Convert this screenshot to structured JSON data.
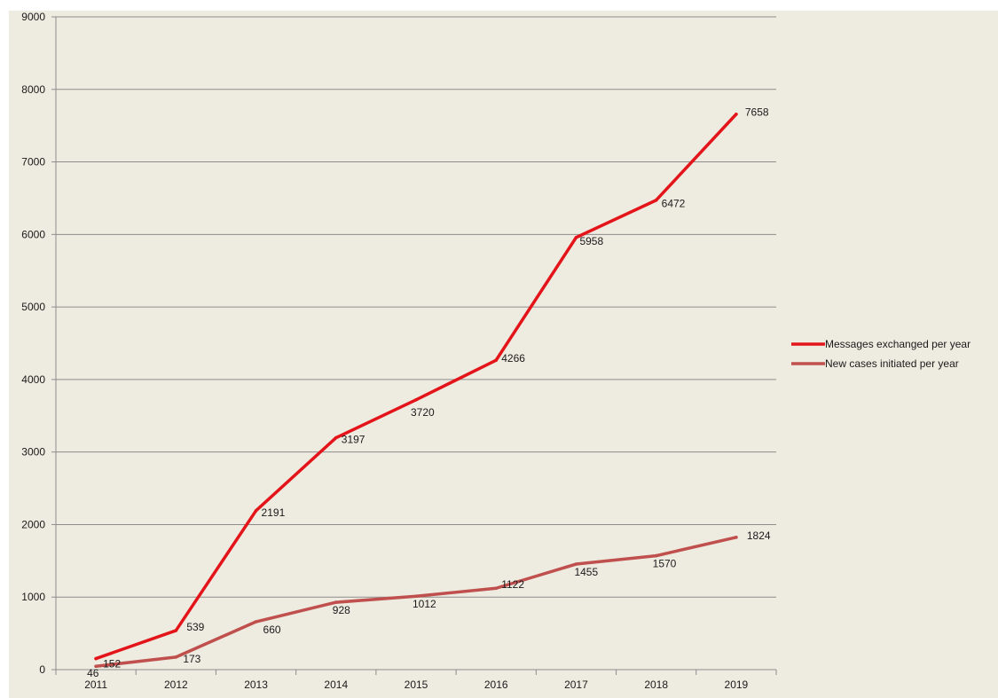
{
  "chart_data": {
    "type": "line",
    "categories": [
      "2011",
      "2012",
      "2013",
      "2014",
      "2015",
      "2016",
      "2017",
      "2018",
      "2019"
    ],
    "series": [
      {
        "name": "Messages exchanged per year",
        "color": "#e3151a",
        "values": [
          152,
          539,
          2191,
          3197,
          3720,
          4266,
          5958,
          6472,
          7658
        ],
        "labels": [
          "152",
          "539",
          "2191",
          "3197",
          "3720",
          "4266",
          "5958",
          "6472",
          "7658"
        ]
      },
      {
        "name": "New cases initiated per year",
        "color": "#c0504d",
        "values": [
          46,
          173,
          660,
          928,
          1012,
          1122,
          1455,
          1570,
          1824
        ],
        "labels": [
          "46",
          "173",
          "660",
          "928",
          "1012",
          "1122",
          "1455",
          "1570",
          "1824"
        ]
      }
    ],
    "y_ticks": [
      "0",
      "1000",
      "2000",
      "3000",
      "4000",
      "5000",
      "6000",
      "7000",
      "8000",
      "9000"
    ],
    "ylim": [
      0,
      9000
    ],
    "grid": "horizontal",
    "legend_position": "right",
    "background": "#eeece1",
    "title": "",
    "xlabel": "",
    "ylabel": ""
  }
}
